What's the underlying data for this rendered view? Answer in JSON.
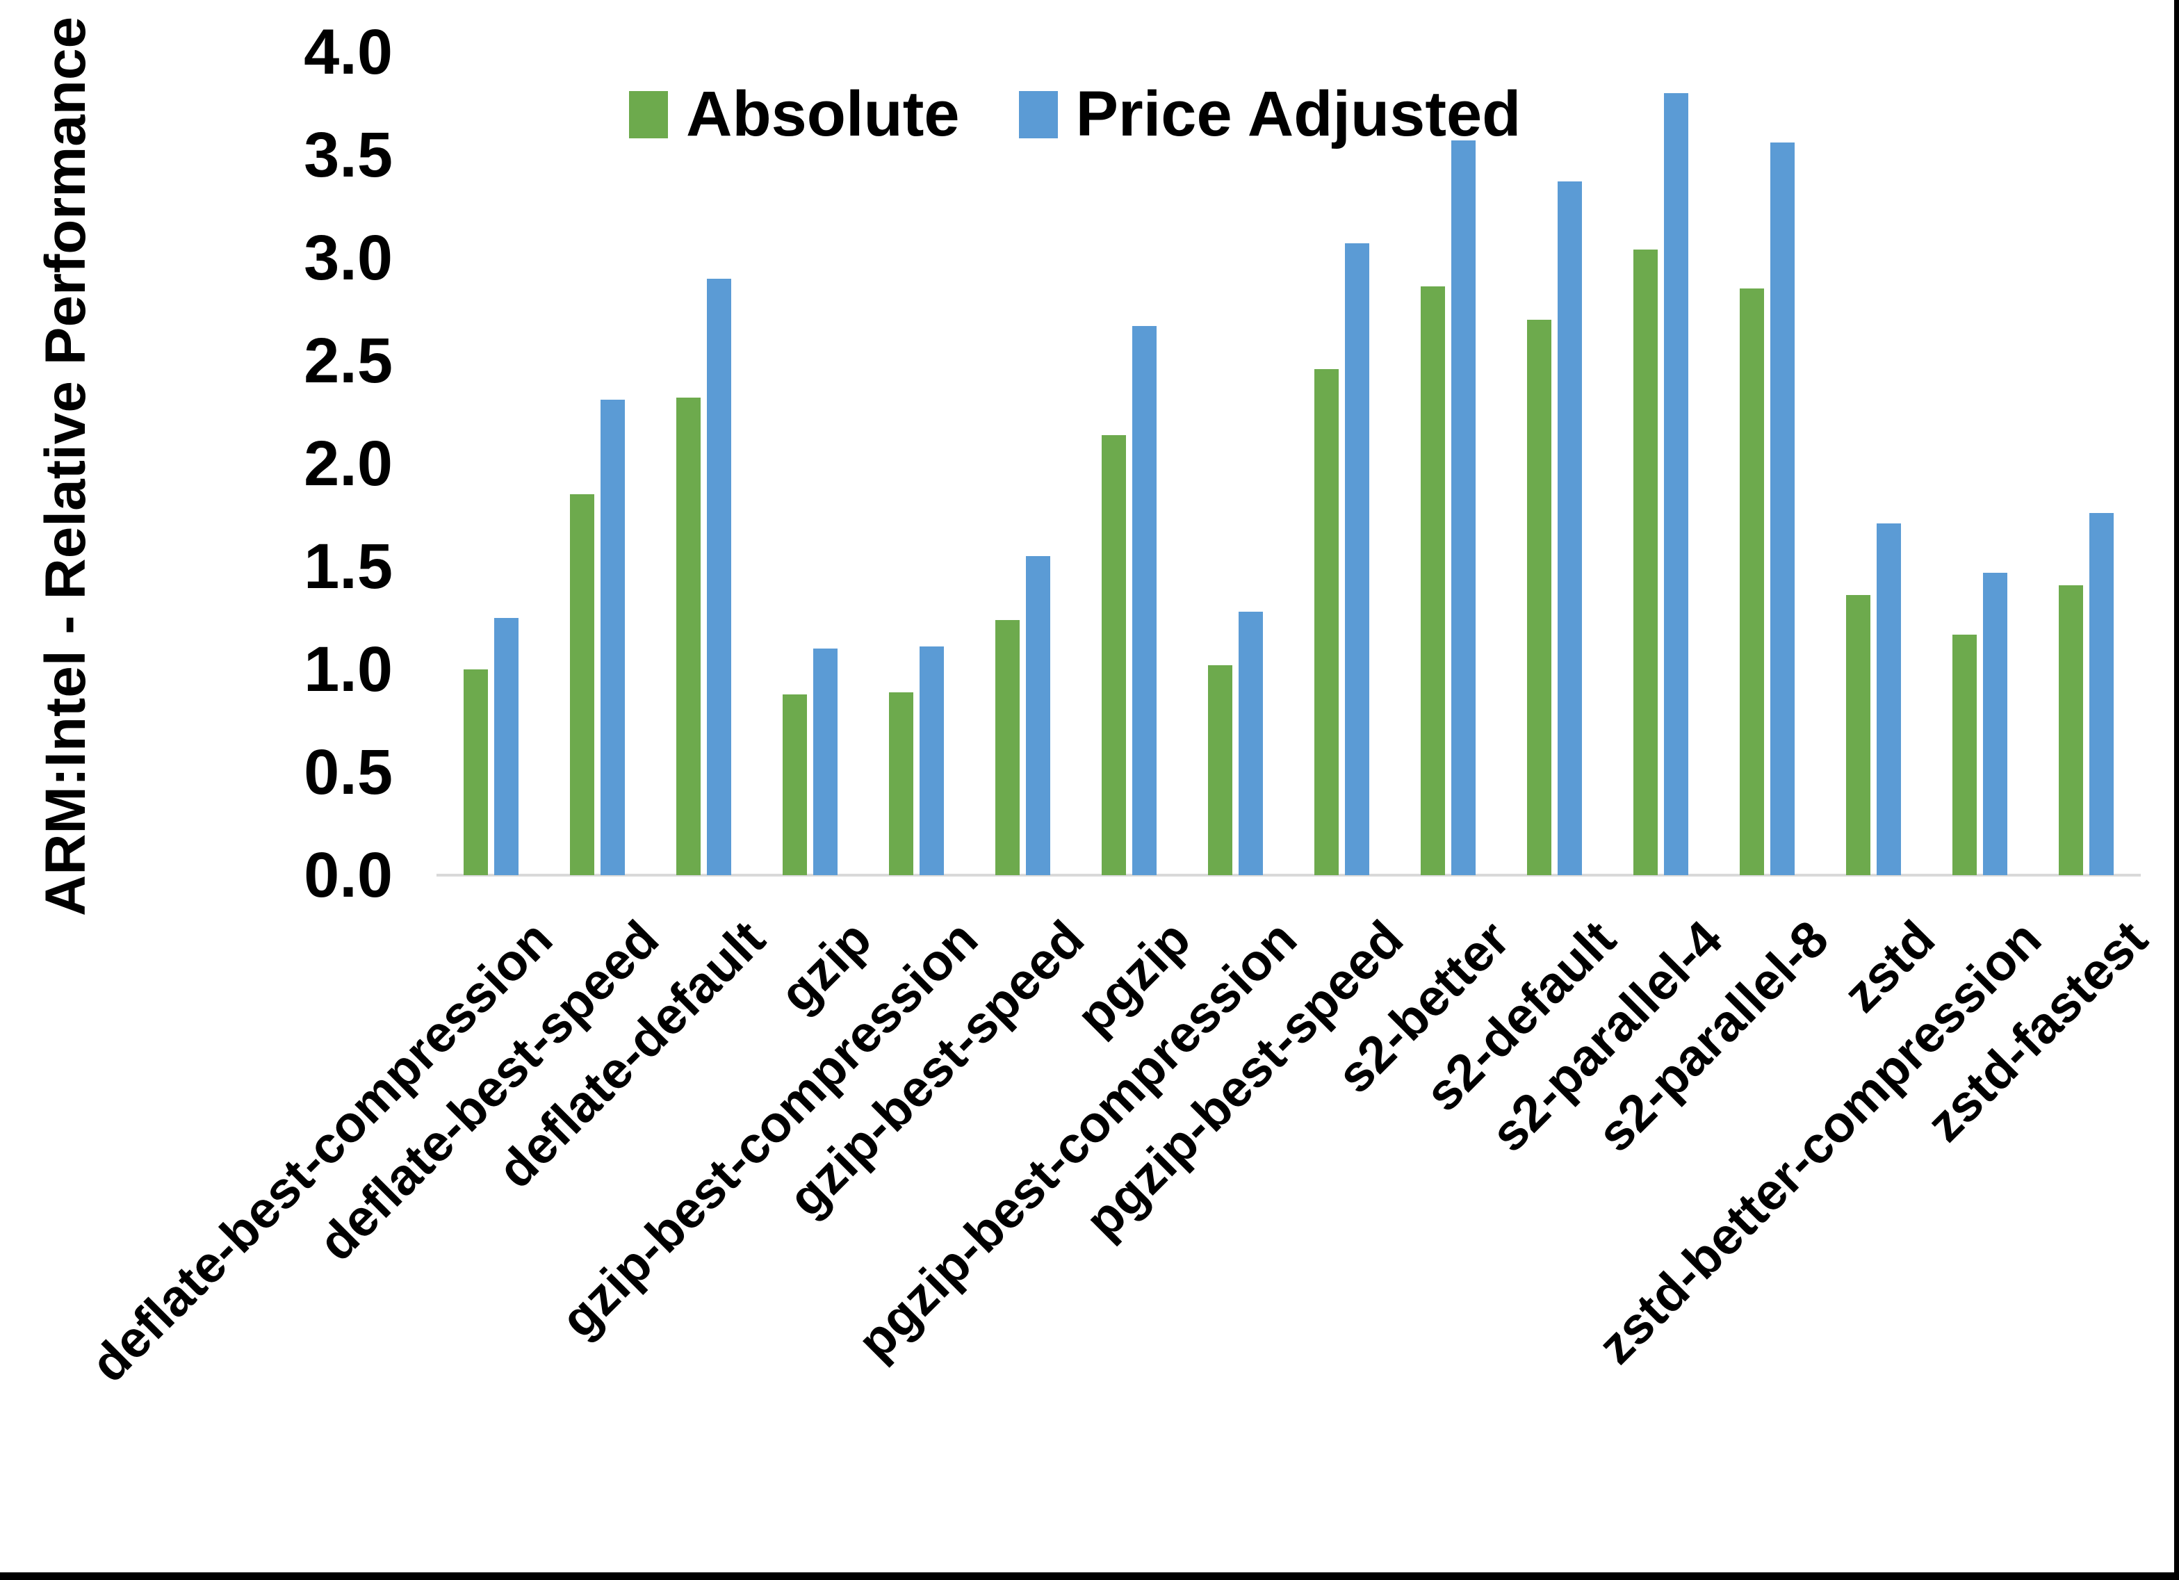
{
  "chart_data": {
    "type": "bar",
    "title": "",
    "xlabel": "",
    "ylabel": "ARM:Intel - Relative Performance",
    "ylim": [
      0,
      4
    ],
    "ytick_labels": [
      "0.0",
      "0.5",
      "1.0",
      "1.5",
      "2.0",
      "2.5",
      "3.0",
      "3.5",
      "4.0"
    ],
    "grid": false,
    "legend_position": "top-center",
    "axis_line_color": "#D9D9D9",
    "frame_border_color": "#000000",
    "categories": [
      "deflate-best-compression",
      "deflate-best-speed",
      "deflate-default",
      "gzip",
      "gzip-best-compression",
      "gzip-best-speed",
      "pgzip",
      "pgzip-best-compression",
      "pgzip-best-speed",
      "s2-better",
      "s2-default",
      "s2-parallel-4",
      "s2-parallel-8",
      "zstd",
      "zstd-better-compression",
      "zstd-fastest"
    ],
    "series": [
      {
        "name": "Absolute",
        "color": "#6DAA4D",
        "values": [
          1.0,
          1.85,
          2.32,
          0.88,
          0.89,
          1.24,
          2.14,
          1.02,
          2.46,
          2.86,
          2.7,
          3.04,
          2.85,
          1.36,
          1.17,
          1.41
        ]
      },
      {
        "name": "Price Adjusted",
        "color": "#5B9BD5",
        "values": [
          1.25,
          2.31,
          2.9,
          1.1,
          1.11,
          1.55,
          2.67,
          1.28,
          3.07,
          3.57,
          3.37,
          3.8,
          3.56,
          1.71,
          1.47,
          1.76
        ]
      }
    ]
  }
}
